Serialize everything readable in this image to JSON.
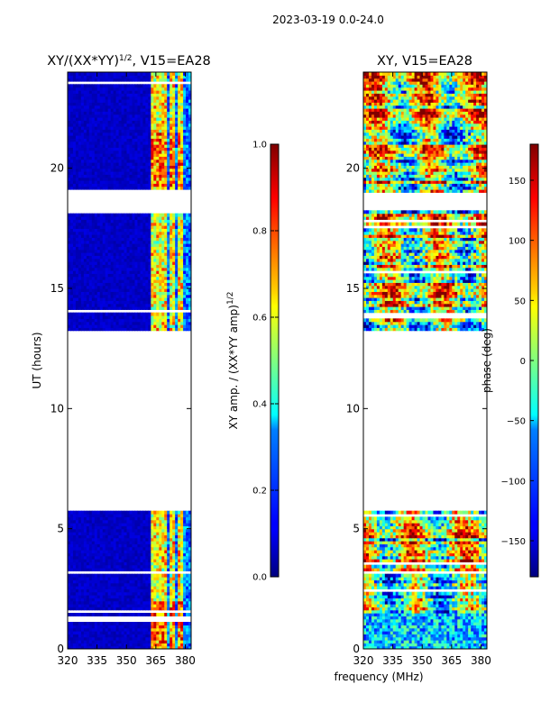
{
  "suptitle": "2023-03-19 0.0-24.0",
  "shared": {
    "xlabel": "frequency (MHz)",
    "ylabel": "UT (hours)",
    "gaps_hours": [
      [
        5.75,
        13.25
      ],
      [
        18.25,
        18.95
      ]
    ]
  },
  "chart_data": [
    {
      "type": "heatmap",
      "title": "XY/(XX*YY)",
      "title_sup": "1/2",
      "title_suffix": ", V15=EA28",
      "xlabel": "",
      "ylabel": "UT (hours)",
      "xlim": [
        320,
        383
      ],
      "ylim": [
        0,
        24
      ],
      "xticks": [
        320,
        335,
        350,
        365,
        380
      ],
      "yticks": [
        0,
        5,
        10,
        15,
        20
      ],
      "colormap": "jet",
      "description": "amplitude mostly low (~0.05) with elevated bands (0.3-0.9) near 363-381 MHz",
      "colorbar": {
        "label": "XY amp. / (XX*YY amp)",
        "label_sup": "1/2",
        "range": [
          0.0,
          1.0
        ],
        "ticks": [
          "0.0",
          "0.2",
          "0.4",
          "0.6",
          "0.8",
          "1.0"
        ]
      }
    },
    {
      "type": "heatmap",
      "title": "XY, V15=EA28",
      "xlabel": "frequency (MHz)",
      "ylabel": "",
      "xlim": [
        320,
        383
      ],
      "ylim": [
        0,
        24
      ],
      "xticks": [
        320,
        335,
        350,
        365,
        380
      ],
      "yticks": [
        0,
        5,
        10,
        15,
        20
      ],
      "colormap": "jet",
      "description": "phase values spanning -180 to 180 degrees, noisy with vertical frequency-dependent structure",
      "colorbar": {
        "label": "phase (deg)",
        "range": [
          -180,
          180
        ],
        "ticks": [
          "150",
          "100",
          "50",
          "0",
          "−50",
          "−100",
          "−150"
        ],
        "tick_values": [
          150,
          100,
          50,
          0,
          -50,
          -100,
          -150
        ]
      }
    }
  ]
}
